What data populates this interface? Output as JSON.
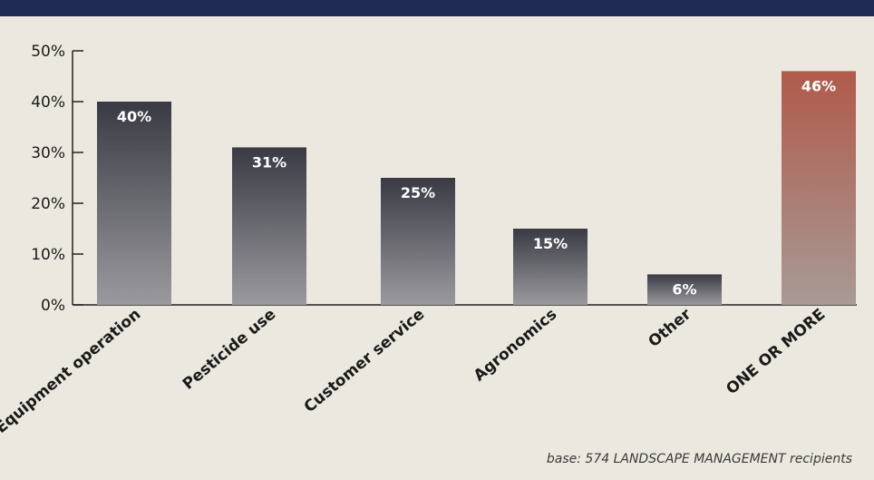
{
  "chart_data": {
    "type": "bar",
    "categories": [
      "Equipment operation",
      "Pesticide use",
      "Customer service",
      "Agronomics",
      "Other",
      "ONE OR MORE"
    ],
    "values": [
      40,
      31,
      25,
      15,
      6,
      46
    ],
    "value_labels": [
      "40%",
      "31%",
      "25%",
      "15%",
      "6%",
      "46%"
    ],
    "yticks": [
      "0%",
      "10%",
      "20%",
      "30%",
      "40%",
      "50%"
    ],
    "ylim": [
      0,
      50
    ],
    "grid": false,
    "colors": {
      "bar_top": "#3a3a44",
      "bar_bottom": "#9a9a9e",
      "highlight_top": "#b05a4a",
      "highlight_bottom": "#a89a95",
      "axis": "#222222",
      "value_label": "#ffffff",
      "header_band": "#1f2b55"
    }
  },
  "footnote": "base: 574 LANDSCAPE MANAGEMENT recipients"
}
